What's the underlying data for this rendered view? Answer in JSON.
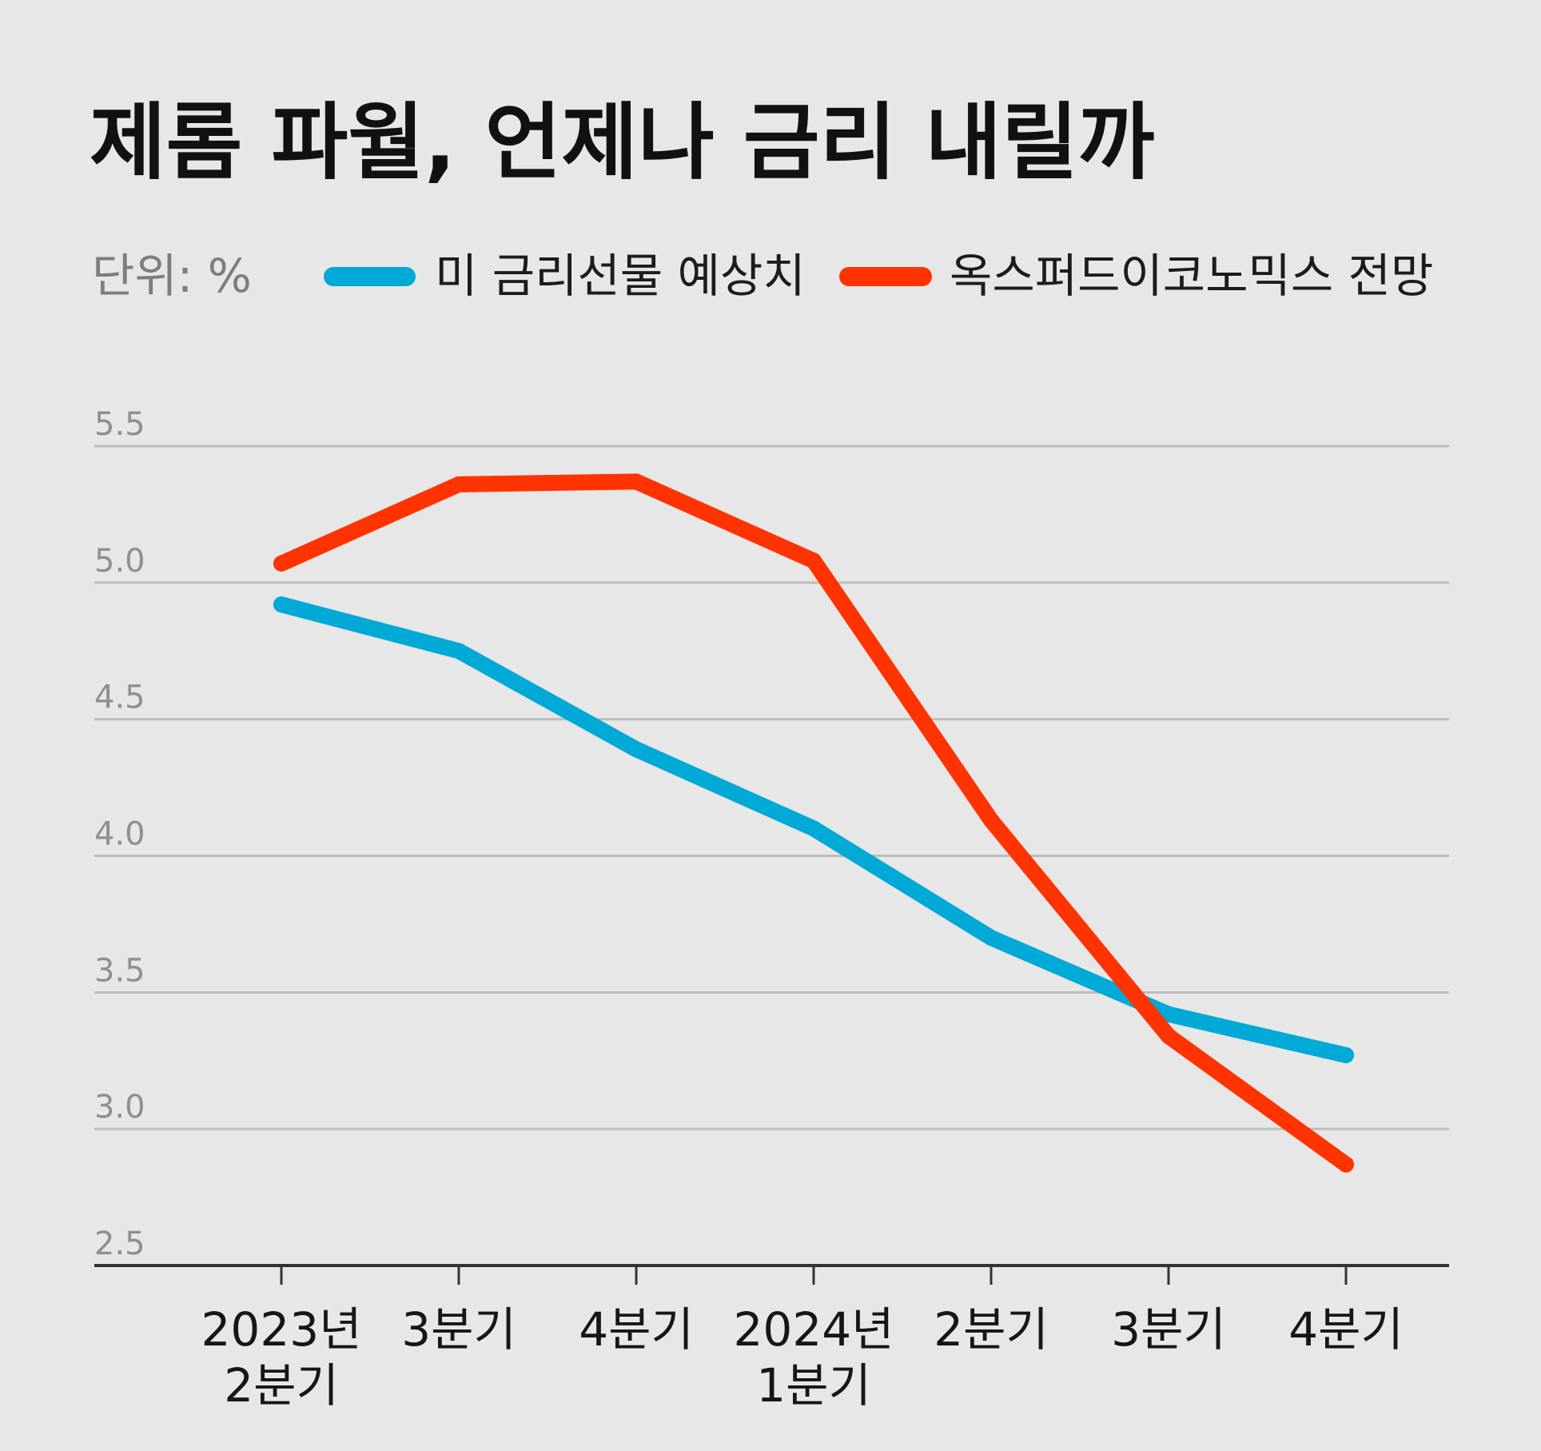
{
  "chart_data": {
    "type": "line",
    "title": "제롬 파월, 언제나 금리 내릴까",
    "unit_label": "단위: %",
    "xlabel": "",
    "ylabel": "",
    "ylim": [
      2.5,
      5.5
    ],
    "yticks": [
      "5.5",
      "5.0",
      "4.5",
      "4.0",
      "3.5",
      "3.0",
      "2.5"
    ],
    "ytick_values": [
      5.5,
      5.0,
      4.5,
      4.0,
      3.5,
      3.0,
      2.5
    ],
    "categories": [
      [
        "2023년",
        "2분기"
      ],
      [
        "3분기"
      ],
      [
        "4분기"
      ],
      [
        "2024년",
        "1분기"
      ],
      [
        "2분기"
      ],
      [
        "3분기"
      ],
      [
        "4분기"
      ]
    ],
    "grid": true,
    "legend_position": "top",
    "series": [
      {
        "name": "미 금리선물 예상치",
        "color": "#00a9d6",
        "values": [
          4.92,
          4.75,
          4.39,
          4.1,
          3.7,
          3.42,
          3.27
        ]
      },
      {
        "name": "옥스퍼드이코노믹스 전망",
        "color": "#ff3300",
        "values": [
          5.07,
          5.36,
          5.37,
          5.08,
          4.13,
          3.34,
          2.87
        ]
      }
    ],
    "colors": {
      "background": "#e7e7e7",
      "gridline": "#bdbdbd",
      "axis": "#333333"
    }
  }
}
